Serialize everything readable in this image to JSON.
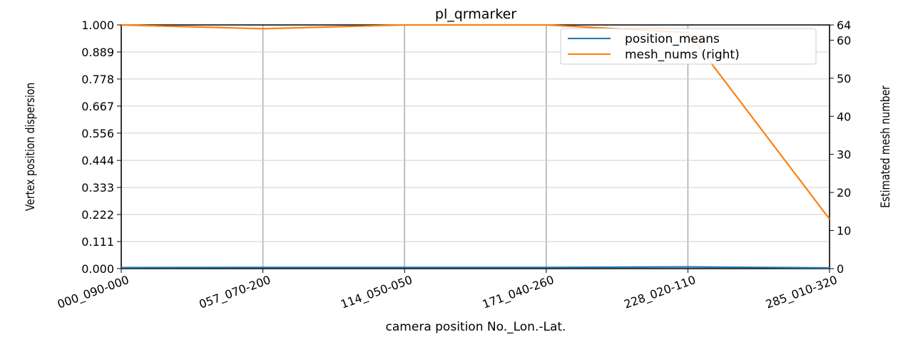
{
  "chart_data": {
    "type": "line",
    "title": "pl_qrmarker",
    "xlabel": "camera position No._Lon.-Lat.",
    "ylabel_left": "Vertex position dispersion",
    "ylabel_right": "Estimated mesh number",
    "categories": [
      "000_090-000",
      "057_070-200",
      "114_050-050",
      "171_040-260",
      "228_020-110",
      "285_010-320"
    ],
    "y_left_ticks": [
      "0.000",
      "0.111",
      "0.222",
      "0.333",
      "0.444",
      "0.556",
      "0.667",
      "0.778",
      "0.889",
      "1.000"
    ],
    "y_left_lim": [
      0,
      1
    ],
    "y_right_ticks": [
      "0",
      "10",
      "20",
      "30",
      "40",
      "50",
      "60",
      "64"
    ],
    "y_right_lim": [
      0,
      64
    ],
    "grid": "x",
    "legend_position": "top-right",
    "series": [
      {
        "name": "position_means",
        "axis": "left",
        "color": "#1f77b4",
        "values": [
          0.004,
          0.005,
          0.005,
          0.005,
          0.007,
          0.003
        ]
      },
      {
        "name": "mesh_nums (right)",
        "axis": "right",
        "color": "#ff7f0e",
        "values": [
          64,
          63,
          64,
          64,
          62,
          13
        ]
      }
    ]
  }
}
